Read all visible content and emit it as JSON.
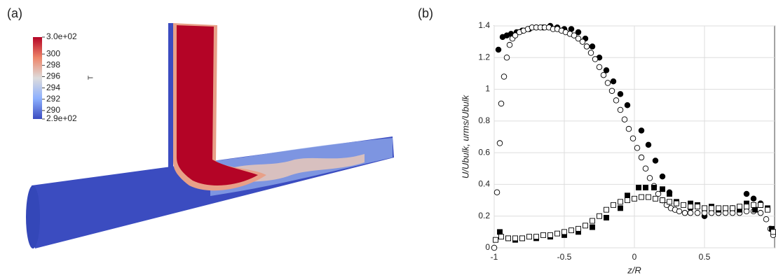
{
  "panel_labels": [
    "(a)",
    "(b)"
  ],
  "render": {
    "colorbar": {
      "title": "T",
      "lim": [
        288.5,
        303
      ],
      "ticks": [
        {
          "value": 303,
          "label": "3.0e+02"
        },
        300,
        298,
        296,
        294,
        292,
        290,
        {
          "value": 288.5,
          "label": "2.9e+02"
        }
      ]
    }
  },
  "chart_data": {
    "type": "scatter",
    "xlabel": "z/R",
    "ylabel": "U/Ubulk, urms/Ubulk",
    "xlim": [
      -1,
      1
    ],
    "ylim": [
      0,
      1.4
    ],
    "xticks": [
      -1,
      -0.5,
      0,
      0.5
    ],
    "yticks": [
      0,
      0.2,
      0.4,
      0.6,
      0.8,
      1,
      1.2,
      1.4
    ],
    "grid": true,
    "series": [
      {
        "marker": "circle",
        "filled": true,
        "color": "#000000",
        "x": [
          -0.97,
          -0.94,
          -0.91,
          -0.88,
          -0.84,
          -0.8,
          -0.75,
          -0.7,
          -0.65,
          -0.6,
          -0.55,
          -0.5,
          -0.45,
          -0.4,
          -0.35,
          -0.3,
          -0.25,
          -0.2,
          -0.15,
          -0.1,
          -0.05,
          0.05,
          0.1,
          0.15,
          0.2,
          0.25,
          0.3,
          0.4,
          0.5,
          0.6,
          0.7,
          0.8,
          0.85,
          0.9
        ],
        "values": [
          1.25,
          1.33,
          1.34,
          1.35,
          1.36,
          1.37,
          1.38,
          1.39,
          1.39,
          1.4,
          1.39,
          1.38,
          1.38,
          1.36,
          1.32,
          1.27,
          1.2,
          1.12,
          1.05,
          0.97,
          0.9,
          0.74,
          0.65,
          0.55,
          0.45,
          0.35,
          0.28,
          0.25,
          0.2,
          0.22,
          0.25,
          0.34,
          0.31,
          0.28
        ]
      },
      {
        "marker": "circle",
        "filled": false,
        "color": "#000000",
        "x": [
          -1,
          -0.98,
          -0.96,
          -0.95,
          -0.93,
          -0.91,
          -0.89,
          -0.87,
          -0.85,
          -0.82,
          -0.79,
          -0.76,
          -0.73,
          -0.7,
          -0.67,
          -0.64,
          -0.61,
          -0.58,
          -0.55,
          -0.52,
          -0.49,
          -0.46,
          -0.43,
          -0.4,
          -0.37,
          -0.34,
          -0.31,
          -0.28,
          -0.25,
          -0.22,
          -0.19,
          -0.16,
          -0.13,
          -0.1,
          -0.07,
          -0.04,
          -0.01,
          0.02,
          0.05,
          0.08,
          0.11,
          0.14,
          0.17,
          0.2,
          0.23,
          0.26,
          0.29,
          0.32,
          0.36,
          0.4,
          0.45,
          0.5,
          0.55,
          0.6,
          0.65,
          0.7,
          0.75,
          0.8,
          0.85,
          0.9,
          0.94,
          0.97,
          0.99
        ],
        "values": [
          0,
          0.35,
          0.66,
          0.91,
          1.08,
          1.2,
          1.28,
          1.32,
          1.34,
          1.36,
          1.37,
          1.38,
          1.39,
          1.39,
          1.39,
          1.39,
          1.39,
          1.38,
          1.38,
          1.37,
          1.36,
          1.35,
          1.34,
          1.32,
          1.3,
          1.27,
          1.23,
          1.19,
          1.14,
          1.09,
          1.04,
          0.99,
          0.93,
          0.87,
          0.81,
          0.75,
          0.69,
          0.63,
          0.57,
          0.5,
          0.44,
          0.39,
          0.34,
          0.3,
          0.27,
          0.25,
          0.24,
          0.23,
          0.22,
          0.22,
          0.22,
          0.22,
          0.22,
          0.22,
          0.22,
          0.22,
          0.22,
          0.23,
          0.23,
          0.22,
          0.18,
          0.12,
          0.08
        ]
      },
      {
        "marker": "square",
        "filled": true,
        "color": "#000000",
        "x": [
          -0.96,
          -0.9,
          -0.85,
          -0.8,
          -0.7,
          -0.6,
          -0.5,
          -0.4,
          -0.3,
          -0.2,
          -0.1,
          -0.05,
          0.03,
          0.08,
          0.14,
          0.2,
          0.25,
          0.3,
          0.4,
          0.45,
          0.5,
          0.55,
          0.6,
          0.65,
          0.7,
          0.75,
          0.8,
          0.86,
          0.9,
          0.95,
          0.98
        ],
        "values": [
          0.1,
          0.06,
          0.05,
          0.06,
          0.06,
          0.07,
          0.08,
          0.1,
          0.13,
          0.19,
          0.25,
          0.33,
          0.38,
          0.38,
          0.38,
          0.37,
          0.34,
          0.29,
          0.28,
          0.27,
          0.25,
          0.26,
          0.24,
          0.25,
          0.25,
          0.24,
          0.28,
          0.24,
          0.27,
          0.25,
          0.12
        ]
      },
      {
        "marker": "square",
        "filled": false,
        "color": "#000000",
        "x": [
          -0.99,
          -0.95,
          -0.9,
          -0.85,
          -0.8,
          -0.75,
          -0.7,
          -0.65,
          -0.6,
          -0.55,
          -0.5,
          -0.45,
          -0.4,
          -0.35,
          -0.3,
          -0.25,
          -0.2,
          -0.15,
          -0.1,
          -0.05,
          0,
          0.05,
          0.1,
          0.15,
          0.2,
          0.25,
          0.3,
          0.35,
          0.4,
          0.45,
          0.5,
          0.55,
          0.6,
          0.65,
          0.7,
          0.75,
          0.8,
          0.85,
          0.9,
          0.95,
          0.99
        ],
        "values": [
          0.05,
          0.07,
          0.06,
          0.06,
          0.06,
          0.07,
          0.07,
          0.08,
          0.08,
          0.09,
          0.1,
          0.11,
          0.12,
          0.14,
          0.17,
          0.2,
          0.24,
          0.27,
          0.29,
          0.3,
          0.31,
          0.32,
          0.32,
          0.31,
          0.3,
          0.29,
          0.28,
          0.27,
          0.26,
          0.26,
          0.25,
          0.25,
          0.25,
          0.25,
          0.25,
          0.26,
          0.26,
          0.27,
          0.27,
          0.24,
          0.1
        ]
      }
    ]
  }
}
